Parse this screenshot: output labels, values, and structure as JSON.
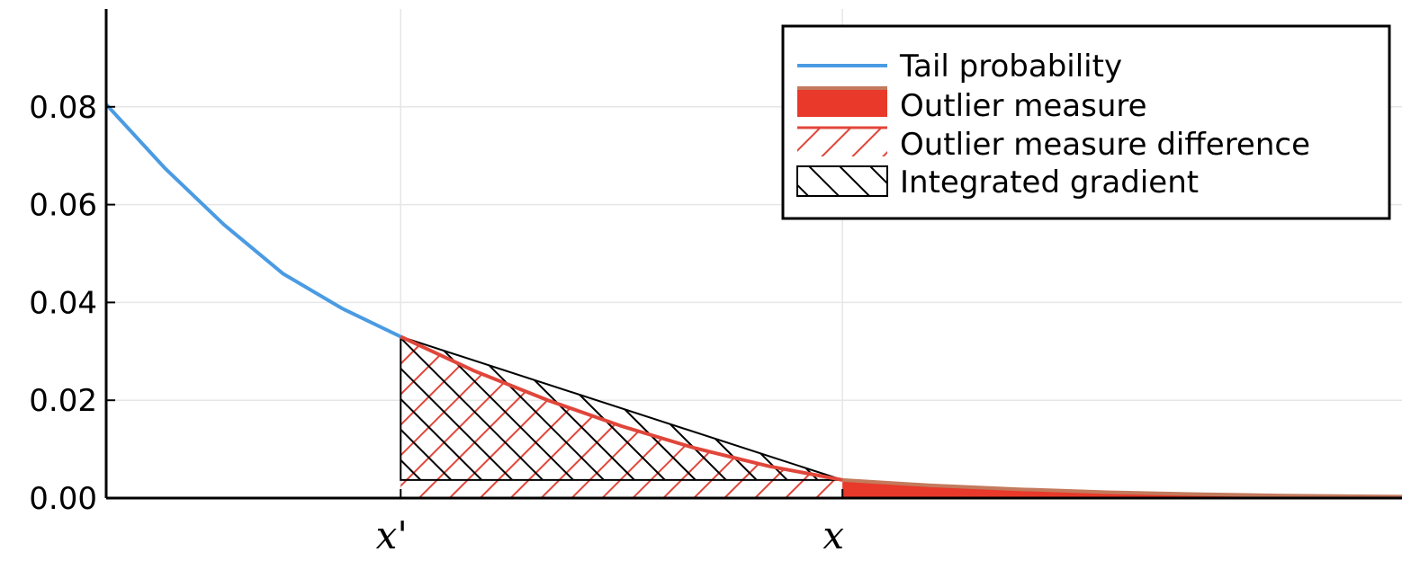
{
  "chart_data": {
    "type": "area",
    "title": "",
    "xlabel": "",
    "ylabel": "",
    "xlim": [
      -1.0,
      3.4
    ],
    "ylim": [
      0,
      0.1
    ],
    "grid": true,
    "legend_position": "top-right",
    "y_ticks": [
      {
        "value": 0.0,
        "label": "0.00"
      },
      {
        "value": 0.02,
        "label": "0.02"
      },
      {
        "value": 0.04,
        "label": "0.04"
      },
      {
        "value": 0.06,
        "label": "0.06"
      },
      {
        "value": 0.08,
        "label": "0.08"
      }
    ],
    "x_ticks": [
      {
        "value": 0.0,
        "label": "x'"
      },
      {
        "value": 1.5,
        "label": "x"
      }
    ],
    "x_prime": 0.0,
    "x_value": 1.5,
    "series": [
      {
        "name": "Tail probability",
        "kind": "line",
        "color": "#4a9be3",
        "x": [
          -1.0,
          -0.8,
          -0.6,
          -0.4,
          -0.2,
          0.0
        ],
        "y": [
          0.0805,
          0.0674,
          0.0559,
          0.0459,
          0.0388,
          0.033
        ]
      },
      {
        "name": "Outlier measure",
        "kind": "filled-area",
        "color": "#e8392a",
        "edge_color": "#c47a5c",
        "x": [
          1.5,
          1.8,
          2.1,
          2.4,
          2.7,
          3.0,
          3.4
        ],
        "y": [
          0.0037,
          0.0026,
          0.0018,
          0.0012,
          0.0008,
          0.0005,
          0.0003
        ]
      },
      {
        "name": "Outlier measure difference",
        "kind": "hatched-area",
        "color": "#e0463a",
        "x": [
          0.0,
          0.25,
          0.5,
          0.75,
          1.0,
          1.25,
          1.5
        ],
        "y": [
          0.033,
          0.026,
          0.02,
          0.0147,
          0.0102,
          0.0065,
          0.0037
        ]
      },
      {
        "name": "Integrated gradient",
        "kind": "hatched-area",
        "color": "#000000",
        "x": [
          0.0,
          1.5
        ],
        "y_top": [
          0.033,
          0.0037
        ],
        "y_bottom": [
          0.0037,
          0.0037
        ]
      }
    ]
  }
}
